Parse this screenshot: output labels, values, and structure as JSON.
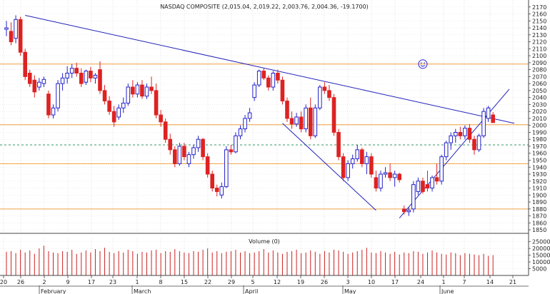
{
  "chart_data": {
    "type": "candlestick",
    "title": "NASDAQ COMPOSITE (2,015.04, 2,019.22, 2,003.76, 2,004.36, -19.1700)",
    "volume_label": "Volume (0)",
    "price_ylim": [
      1845,
      2180
    ],
    "price_ticks": [
      1850,
      1860,
      1870,
      1880,
      1890,
      1900,
      1910,
      1920,
      1930,
      1940,
      1950,
      1960,
      1970,
      1980,
      1990,
      2000,
      2010,
      2020,
      2030,
      2040,
      2050,
      2060,
      2070,
      2080,
      2090,
      2100,
      2110,
      2120,
      2130,
      2140,
      2150,
      2160,
      2170
    ],
    "volume_ylim": [
      0,
      28000
    ],
    "volume_ticks": [
      5000,
      10000,
      15000,
      20000,
      25000
    ],
    "x_tick_labels": [
      "20",
      "26",
      "2",
      "9",
      "17",
      "23",
      "1",
      "8",
      "15",
      "22",
      "29",
      "5",
      "12",
      "19",
      "26",
      "3",
      "10",
      "17",
      "24",
      "1",
      "7",
      "14",
      "21"
    ],
    "month_labels": [
      "February",
      "March",
      "April",
      "May",
      "June"
    ],
    "horizontal_lines": [
      {
        "value": 2088,
        "color": "#f0a040",
        "style": "solid"
      },
      {
        "value": 2001,
        "color": "#f0a040",
        "style": "solid"
      },
      {
        "value": 1972,
        "color": "#3a9a6a",
        "style": "dashed"
      },
      {
        "value": 1945,
        "color": "#f0a040",
        "style": "solid"
      },
      {
        "value": 1880,
        "color": "#f0a040",
        "style": "solid"
      }
    ],
    "colors": {
      "up": "#2222cc",
      "down": "#dd2222",
      "trend": "#2222bb",
      "grid": "#bbbbbb",
      "volume": "#cc2222"
    },
    "candles": [
      {
        "o": 2138,
        "h": 2150,
        "l": 2128,
        "c": 2140
      },
      {
        "o": 2135,
        "h": 2148,
        "l": 2115,
        "c": 2120
      },
      {
        "o": 2125,
        "h": 2158,
        "l": 2118,
        "c": 2152
      },
      {
        "o": 2152,
        "h": 2156,
        "l": 2100,
        "c": 2105
      },
      {
        "o": 2105,
        "h": 2110,
        "l": 2065,
        "c": 2070
      },
      {
        "o": 2075,
        "h": 2080,
        "l": 2055,
        "c": 2060
      },
      {
        "o": 2065,
        "h": 2072,
        "l": 2040,
        "c": 2048
      },
      {
        "o": 2055,
        "h": 2068,
        "l": 2050,
        "c": 2062
      },
      {
        "o": 2060,
        "h": 2070,
        "l": 2055,
        "c": 2066
      },
      {
        "o": 2045,
        "h": 2050,
        "l": 2010,
        "c": 2015
      },
      {
        "o": 2015,
        "h": 2030,
        "l": 2010,
        "c": 2025
      },
      {
        "o": 2025,
        "h": 2065,
        "l": 2020,
        "c": 2060
      },
      {
        "o": 2060,
        "h": 2075,
        "l": 2050,
        "c": 2068
      },
      {
        "o": 2068,
        "h": 2085,
        "l": 2060,
        "c": 2075
      },
      {
        "o": 2075,
        "h": 2088,
        "l": 2068,
        "c": 2082
      },
      {
        "o": 2082,
        "h": 2090,
        "l": 2070,
        "c": 2075
      },
      {
        "o": 2075,
        "h": 2082,
        "l": 2055,
        "c": 2060
      },
      {
        "o": 2062,
        "h": 2080,
        "l": 2058,
        "c": 2078
      },
      {
        "o": 2078,
        "h": 2084,
        "l": 2062,
        "c": 2068
      },
      {
        "o": 2068,
        "h": 2075,
        "l": 2060,
        "c": 2072
      },
      {
        "o": 2080,
        "h": 2092,
        "l": 2045,
        "c": 2050
      },
      {
        "o": 2050,
        "h": 2058,
        "l": 2030,
        "c": 2035
      },
      {
        "o": 2035,
        "h": 2042,
        "l": 2015,
        "c": 2020
      },
      {
        "o": 2020,
        "h": 2028,
        "l": 1998,
        "c": 2005
      },
      {
        "o": 2012,
        "h": 2030,
        "l": 2008,
        "c": 2025
      },
      {
        "o": 2025,
        "h": 2040,
        "l": 2018,
        "c": 2032
      },
      {
        "o": 2032,
        "h": 2060,
        "l": 2028,
        "c": 2055
      },
      {
        "o": 2055,
        "h": 2065,
        "l": 2040,
        "c": 2045
      },
      {
        "o": 2045,
        "h": 2062,
        "l": 2040,
        "c": 2058
      },
      {
        "o": 2058,
        "h": 2065,
        "l": 2038,
        "c": 2042
      },
      {
        "o": 2042,
        "h": 2060,
        "l": 2038,
        "c": 2055
      },
      {
        "o": 2055,
        "h": 2070,
        "l": 2045,
        "c": 2050
      },
      {
        "o": 2050,
        "h": 2060,
        "l": 2010,
        "c": 2015
      },
      {
        "o": 2015,
        "h": 2022,
        "l": 1998,
        "c": 2005
      },
      {
        "o": 2005,
        "h": 2010,
        "l": 1975,
        "c": 1980
      },
      {
        "o": 1980,
        "h": 1988,
        "l": 1958,
        "c": 1965
      },
      {
        "o": 1965,
        "h": 1970,
        "l": 1940,
        "c": 1945
      },
      {
        "o": 1945,
        "h": 1975,
        "l": 1942,
        "c": 1970
      },
      {
        "o": 1970,
        "h": 1975,
        "l": 1950,
        "c": 1955
      },
      {
        "o": 1945,
        "h": 1962,
        "l": 1940,
        "c": 1958
      },
      {
        "o": 1958,
        "h": 1972,
        "l": 1952,
        "c": 1968
      },
      {
        "o": 1968,
        "h": 1985,
        "l": 1962,
        "c": 1980
      },
      {
        "o": 1980,
        "h": 1982,
        "l": 1950,
        "c": 1955
      },
      {
        "o": 1955,
        "h": 1960,
        "l": 1925,
        "c": 1930
      },
      {
        "o": 1930,
        "h": 1935,
        "l": 1905,
        "c": 1910
      },
      {
        "o": 1910,
        "h": 1915,
        "l": 1898,
        "c": 1905
      },
      {
        "o": 1900,
        "h": 1918,
        "l": 1895,
        "c": 1912
      },
      {
        "o": 1912,
        "h": 1970,
        "l": 1910,
        "c": 1965
      },
      {
        "o": 1965,
        "h": 1972,
        "l": 1958,
        "c": 1962
      },
      {
        "o": 1962,
        "h": 1990,
        "l": 1960,
        "c": 1985
      },
      {
        "o": 1985,
        "h": 2000,
        "l": 1980,
        "c": 1995
      },
      {
        "o": 1995,
        "h": 2015,
        "l": 1990,
        "c": 2010
      },
      {
        "o": 2010,
        "h": 2025,
        "l": 2005,
        "c": 2018
      },
      {
        "o": 2040,
        "h": 2062,
        "l": 2035,
        "c": 2058
      },
      {
        "o": 2058,
        "h": 2080,
        "l": 2055,
        "c": 2078
      },
      {
        "o": 2078,
        "h": 2082,
        "l": 2065,
        "c": 2068
      },
      {
        "o": 2068,
        "h": 2072,
        "l": 2050,
        "c": 2055
      },
      {
        "o": 2055,
        "h": 2078,
        "l": 2050,
        "c": 2075
      },
      {
        "o": 2075,
        "h": 2080,
        "l": 2060,
        "c": 2065
      },
      {
        "o": 2065,
        "h": 2070,
        "l": 2030,
        "c": 2035
      },
      {
        "o": 2035,
        "h": 2040,
        "l": 2005,
        "c": 2010
      },
      {
        "o": 2010,
        "h": 2020,
        "l": 1995,
        "c": 2002
      },
      {
        "o": 2002,
        "h": 2018,
        "l": 1998,
        "c": 2012
      },
      {
        "o": 2012,
        "h": 2020,
        "l": 1990,
        "c": 1995
      },
      {
        "o": 1995,
        "h": 2030,
        "l": 1990,
        "c": 2025
      },
      {
        "o": 2025,
        "h": 2040,
        "l": 1980,
        "c": 1985
      },
      {
        "o": 1985,
        "h": 2030,
        "l": 1982,
        "c": 2025
      },
      {
        "o": 2025,
        "h": 2058,
        "l": 2022,
        "c": 2055
      },
      {
        "o": 2055,
        "h": 2062,
        "l": 2045,
        "c": 2050
      },
      {
        "o": 2050,
        "h": 2058,
        "l": 2035,
        "c": 2040
      },
      {
        "o": 2040,
        "h": 2045,
        "l": 1985,
        "c": 1990
      },
      {
        "o": 1990,
        "h": 1995,
        "l": 1950,
        "c": 1955
      },
      {
        "o": 1955,
        "h": 1960,
        "l": 1920,
        "c": 1925
      },
      {
        "o": 1925,
        "h": 1950,
        "l": 1920,
        "c": 1945
      },
      {
        "o": 1945,
        "h": 1958,
        "l": 1938,
        "c": 1952
      },
      {
        "o": 1952,
        "h": 1972,
        "l": 1948,
        "c": 1965
      },
      {
        "o": 1965,
        "h": 1968,
        "l": 1940,
        "c": 1945
      },
      {
        "o": 1945,
        "h": 1962,
        "l": 1930,
        "c": 1955
      },
      {
        "o": 1955,
        "h": 1960,
        "l": 1925,
        "c": 1930
      },
      {
        "o": 1925,
        "h": 1935,
        "l": 1905,
        "c": 1910
      },
      {
        "o": 1910,
        "h": 1935,
        "l": 1905,
        "c": 1930
      },
      {
        "o": 1930,
        "h": 1940,
        "l": 1925,
        "c": 1932
      },
      {
        "o": 1932,
        "h": 1945,
        "l": 1920,
        "c": 1925
      },
      {
        "o": 1925,
        "h": 1935,
        "l": 1912,
        "c": 1930
      },
      {
        "o": 1930,
        "h": 1932,
        "l": 1918,
        "c": 1922
      },
      {
        "o": 1880,
        "h": 1885,
        "l": 1872,
        "c": 1876
      },
      {
        "o": 1876,
        "h": 1882,
        "l": 1870,
        "c": 1878
      },
      {
        "o": 1880,
        "h": 1920,
        "l": 1875,
        "c": 1915
      },
      {
        "o": 1905,
        "h": 1925,
        "l": 1900,
        "c": 1920
      },
      {
        "o": 1920,
        "h": 1925,
        "l": 1902,
        "c": 1905
      },
      {
        "o": 1915,
        "h": 1935,
        "l": 1905,
        "c": 1910
      },
      {
        "o": 1910,
        "h": 1928,
        "l": 1905,
        "c": 1925
      },
      {
        "o": 1925,
        "h": 1945,
        "l": 1915,
        "c": 1920
      },
      {
        "o": 1920,
        "h": 1958,
        "l": 1915,
        "c": 1955
      },
      {
        "o": 1955,
        "h": 1978,
        "l": 1950,
        "c": 1975
      },
      {
        "o": 1975,
        "h": 1990,
        "l": 1965,
        "c": 1985
      },
      {
        "o": 1985,
        "h": 1995,
        "l": 1975,
        "c": 1990
      },
      {
        "o": 1990,
        "h": 1998,
        "l": 1980,
        "c": 1985
      },
      {
        "o": 1985,
        "h": 2000,
        "l": 1980,
        "c": 1996
      },
      {
        "o": 1996,
        "h": 2002,
        "l": 1975,
        "c": 1980
      },
      {
        "o": 1980,
        "h": 1985,
        "l": 1958,
        "c": 1965
      },
      {
        "o": 1965,
        "h": 1988,
        "l": 1962,
        "c": 1985
      },
      {
        "o": 1985,
        "h": 2025,
        "l": 1982,
        "c": 2020
      },
      {
        "o": 2010,
        "h": 2028,
        "l": 2005,
        "c": 2025
      },
      {
        "o": 2015,
        "h": 2019,
        "l": 2004,
        "c": 2004
      }
    ],
    "volumes": [
      17500,
      18000,
      16500,
      19000,
      17000,
      18500,
      16000,
      20000,
      22000,
      18000,
      17000,
      16500,
      18000,
      17500,
      19000,
      16000,
      17000,
      18500,
      17000,
      19500,
      18000,
      20500,
      17500,
      16500,
      18000,
      17000,
      19000,
      18000,
      16000,
      17500,
      17000,
      18500,
      19000,
      16500,
      18000,
      17500,
      19500,
      18000,
      17000,
      16500,
      18000,
      17500,
      19000,
      20000,
      17000,
      18000,
      16500,
      17500,
      18000,
      19000,
      17000,
      18000,
      16500,
      17000,
      18000,
      19500,
      17000,
      18500,
      17000,
      16000,
      17500,
      18000,
      19000,
      16500,
      17000,
      18500,
      17500,
      16000,
      18000,
      17000,
      19000,
      18500,
      17500,
      16000,
      17000,
      18000,
      19000,
      20500,
      17000,
      16500,
      18000,
      17000,
      16000,
      17500,
      15500,
      17000,
      16500,
      18000,
      17500,
      16000,
      17000,
      18500,
      17000,
      16000,
      15500,
      17000,
      16500,
      15000,
      16500,
      16000,
      15500,
      15000,
      16000,
      14500,
      15000
    ]
  }
}
